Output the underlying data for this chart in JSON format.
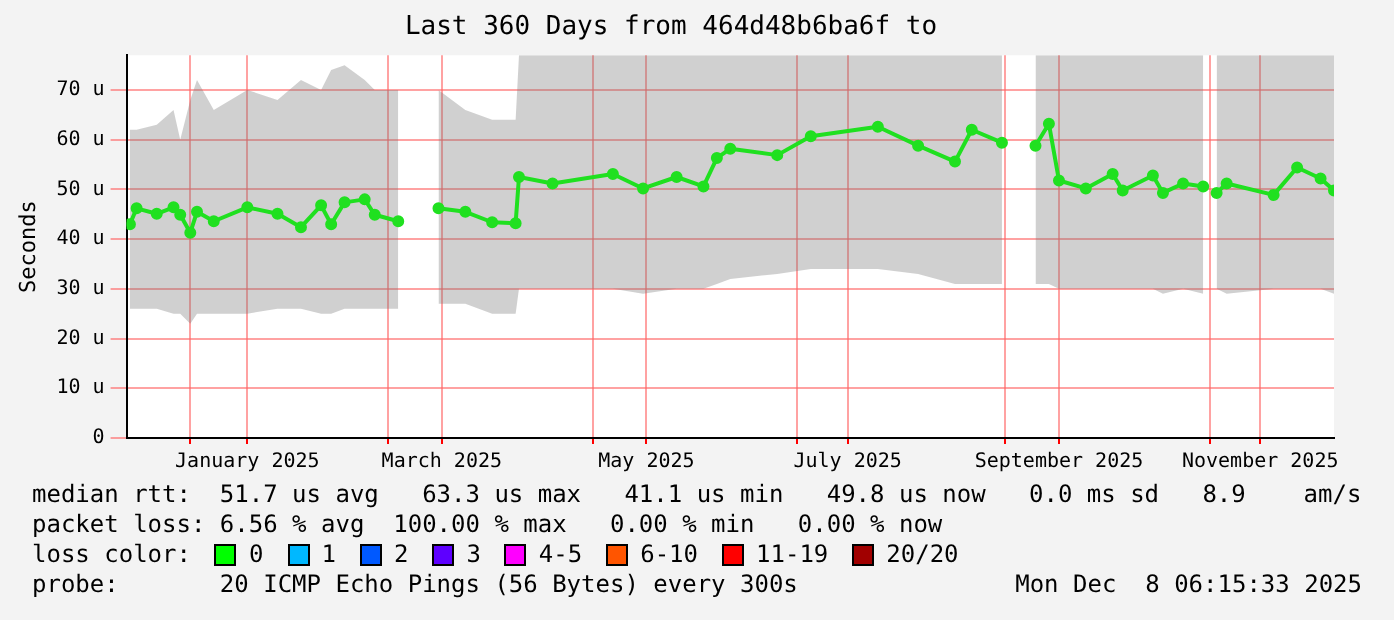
{
  "chart_data": {
    "type": "line",
    "title": "Last 360 Days from 464d48b6ba6f to",
    "ylabel": "Seconds",
    "x": [
      "2024-12-14",
      "2024-12-16",
      "2024-12-22",
      "2024-12-27",
      "2024-12-29",
      "2025-01-01",
      "2025-01-03",
      "2025-01-08",
      "2025-01-18",
      "2025-01-27",
      "2025-02-03",
      "2025-02-09",
      "2025-02-12",
      "2025-02-16",
      "2025-02-22",
      "2025-02-25",
      "2025-03-04",
      "2025-03-10",
      "2025-03-16",
      "2025-03-24",
      "2025-04-01",
      "2025-04-08",
      "2025-04-09",
      "2025-04-19",
      "2025-05-07",
      "2025-05-16",
      "2025-05-26",
      "2025-06-03",
      "2025-06-07",
      "2025-06-11",
      "2025-06-25",
      "2025-07-05",
      "2025-07-25",
      "2025-08-06",
      "2025-08-17",
      "2025-08-22",
      "2025-08-31",
      "2025-09-05",
      "2025-09-10",
      "2025-09-14",
      "2025-09-17",
      "2025-09-25",
      "2025-10-03",
      "2025-10-06",
      "2025-10-15",
      "2025-10-18",
      "2025-10-24",
      "2025-10-30",
      "2025-11-01",
      "2025-11-03",
      "2025-11-06",
      "2025-11-20",
      "2025-11-27",
      "2025-12-04",
      "2025-12-08"
    ],
    "series": [
      {
        "color": "#20e020",
        "values": [
          43,
          46.2,
          45.1,
          46.4,
          44.9,
          41.3,
          45.5,
          43.6,
          46.4,
          45.1,
          42.4,
          46.8,
          43,
          47.4,
          48,
          44.9,
          43.6,
          null,
          46.2,
          45.5,
          43.4,
          43.2,
          52.5,
          51.2,
          53.1,
          50.2,
          52.5,
          50.6,
          56.3,
          58.2,
          56.9,
          60.7,
          62.6,
          58.8,
          55.6,
          62,
          59.4,
          null,
          58.8,
          63.2,
          51.8,
          50.2,
          53.1,
          49.8,
          52.8,
          49.3,
          51.2,
          50.6,
          null,
          49.3,
          51.2,
          48.9,
          54.4,
          52.2,
          49.8
        ],
        "lower": [
          26,
          26,
          26,
          25,
          25,
          23,
          25,
          25,
          25,
          26,
          26,
          25,
          25,
          26,
          26,
          26,
          26,
          null,
          27,
          27,
          25,
          25,
          30,
          30,
          30,
          29,
          30,
          30,
          31,
          32,
          33,
          34,
          34,
          33,
          31,
          31,
          31,
          null,
          31,
          31,
          30,
          30,
          30,
          30,
          30,
          29,
          30,
          29,
          null,
          30,
          29,
          30,
          30,
          30,
          29
        ],
        "upper": [
          62,
          62,
          63,
          66,
          60,
          68,
          72,
          66,
          70,
          68,
          72,
          70,
          74,
          75,
          72,
          70,
          70,
          null,
          70,
          66,
          64,
          64,
          77,
          77,
          77,
          77,
          77,
          77,
          77,
          77,
          77,
          77,
          77,
          77,
          77,
          77,
          77,
          null,
          77,
          77,
          77,
          77,
          77,
          77,
          77,
          77,
          77,
          77,
          null,
          77,
          77,
          77,
          77,
          77,
          77
        ]
      }
    ],
    "ylim": [
      0,
      77
    ],
    "yticks": [
      0,
      {
        "value": 10,
        "label": "10 u"
      },
      {
        "value": 20,
        "label": "20 u"
      },
      {
        "value": 30,
        "label": "30 u"
      },
      {
        "value": 40,
        "label": "40 u"
      },
      {
        "value": 50,
        "label": "50 u"
      },
      {
        "value": 60,
        "label": "60 u"
      },
      {
        "value": 70,
        "label": "70 u"
      }
    ],
    "xlim": [
      "2024-12-13",
      "2025-12-08"
    ],
    "xticks": [
      {
        "value": "2025-01-01",
        "label": null
      },
      {
        "value": "2025-01-18",
        "label": "January 2025"
      },
      {
        "value": "2025-03-01",
        "label": null
      },
      {
        "value": "2025-03-17",
        "label": "March 2025"
      },
      {
        "value": "2025-05-01",
        "label": null
      },
      {
        "value": "2025-05-17",
        "label": "May 2025"
      },
      {
        "value": "2025-07-01",
        "label": null
      },
      {
        "value": "2025-07-16",
        "label": "July 2025"
      },
      {
        "value": "2025-09-01",
        "label": null
      },
      {
        "value": "2025-09-17",
        "label": "September 2025"
      },
      {
        "value": "2025-11-01",
        "label": null
      },
      {
        "value": "2025-11-16",
        "label": "November 2025"
      }
    ],
    "grid": true,
    "marker": "circle",
    "line_style": "solid",
    "legend": false,
    "annotations": [
      "median rtt:  51.7 us avg   63.3 us max   41.1 us min   49.8 us now   0.0 ms sd   8.9    am/s",
      "packet loss: 6.56 % avg  100.00 % max   0.00 % min   0.00 % now",
      "loss color:",
      "0",
      "1",
      "2",
      "3",
      "4-5",
      "6-10",
      "11-19",
      "20/20",
      "probe:       20 ICMP Echo Pings (56 Bytes) every 300s",
      "Mon Dec  8 06:15:33 2025"
    ]
  }
}
